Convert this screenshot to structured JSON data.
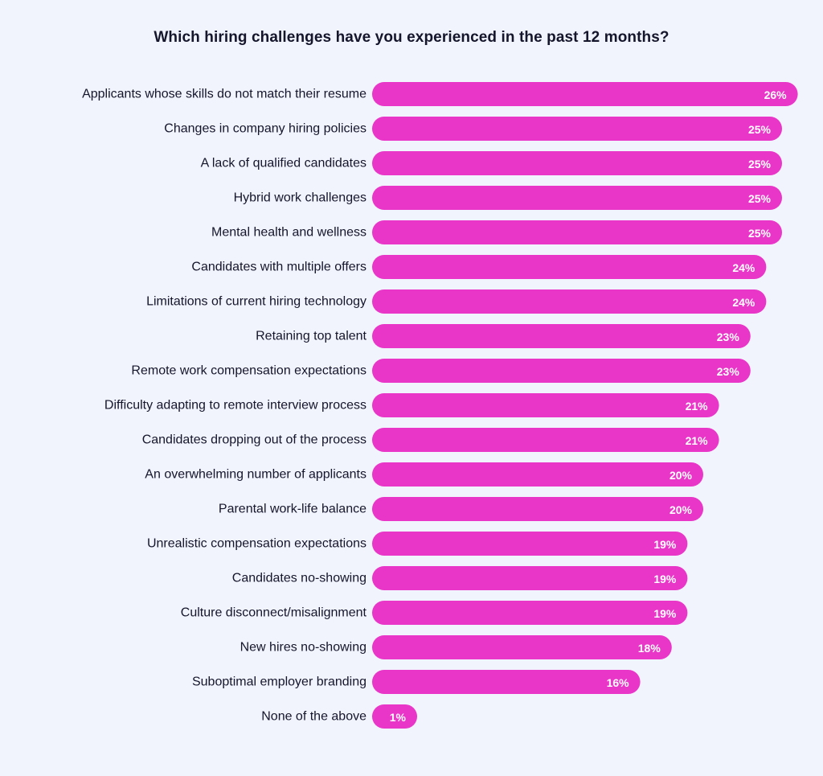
{
  "chart_data": {
    "type": "bar",
    "orientation": "horizontal",
    "title": "Which hiring challenges have you experienced in the past 12 months?",
    "categories": [
      "Applicants whose skills do not match their resume",
      "Changes in company hiring policies",
      "A lack of qualified candidates",
      "Hybrid work challenges",
      "Mental health and wellness",
      "Candidates with multiple offers",
      "Limitations of current hiring technology",
      "Retaining top talent",
      "Remote work compensation expectations",
      "Difficulty adapting to remote interview process",
      "Candidates dropping out of the process",
      "An overwhelming number of applicants",
      "Parental work-life balance",
      "Unrealistic compensation expectations",
      "Candidates no-showing",
      "Culture disconnect/misalignment",
      "New hires no-showing",
      "Suboptimal employer branding",
      "None of the above"
    ],
    "values": [
      26,
      25,
      25,
      25,
      25,
      24,
      24,
      23,
      23,
      21,
      21,
      20,
      20,
      19,
      19,
      19,
      18,
      16,
      1
    ],
    "value_labels": [
      "26%",
      "25%",
      "25%",
      "25%",
      "25%",
      "24%",
      "24%",
      "23%",
      "23%",
      "21%",
      "21%",
      "20%",
      "20%",
      "19%",
      "19%",
      "19%",
      "18%",
      "16%",
      "1%"
    ],
    "xlabel": "",
    "ylabel": "",
    "grid": false,
    "legend": "none",
    "bar_color": "#e935c8",
    "label_color": "#ffffff",
    "text_color": "#15152b",
    "background": "#f2f4fd"
  }
}
